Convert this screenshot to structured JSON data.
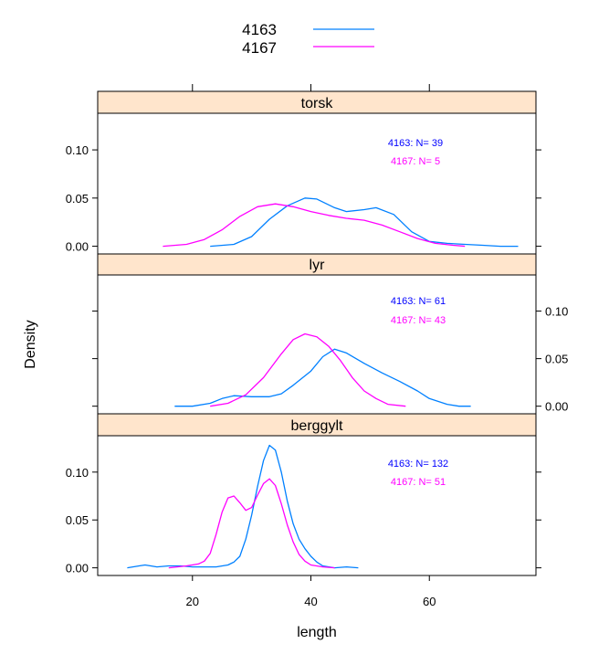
{
  "chart_data": {
    "type": "line",
    "xlabel": "length",
    "ylabel": "Density",
    "xlim": [
      4,
      78
    ],
    "ylim": [
      -0.008,
      0.138
    ],
    "x_ticks": [
      20,
      40,
      60
    ],
    "y_ticks": [
      0.0,
      0.05,
      0.1
    ],
    "y_tick_labels": [
      "0.00",
      "0.05",
      "0.10"
    ],
    "legend": [
      {
        "name": "4163",
        "color": "#0080ff"
      },
      {
        "name": "4167",
        "color": "#ff00ff"
      }
    ],
    "panels": [
      {
        "name": "torsk",
        "y_axis_side": "left",
        "counts": [
          {
            "label": "4163: N=  39",
            "color": "#0000ff"
          },
          {
            "label": "4167: N=  5",
            "color": "#ff00ff"
          }
        ],
        "series": [
          {
            "name": "4163",
            "color": "#0080ff",
            "points": [
              [
                23,
                0.0
              ],
              [
                27,
                0.002
              ],
              [
                30,
                0.01
              ],
              [
                33,
                0.028
              ],
              [
                36,
                0.042
              ],
              [
                39,
                0.05
              ],
              [
                41,
                0.049
              ],
              [
                44,
                0.04
              ],
              [
                46,
                0.036
              ],
              [
                49,
                0.038
              ],
              [
                51,
                0.04
              ],
              [
                54,
                0.033
              ],
              [
                57,
                0.015
              ],
              [
                60,
                0.005
              ],
              [
                63,
                0.003
              ],
              [
                66,
                0.002
              ],
              [
                69,
                0.001
              ],
              [
                72,
                0.0
              ],
              [
                75,
                0.0
              ]
            ]
          },
          {
            "name": "4167",
            "color": "#ff00ff",
            "points": [
              [
                15,
                0.0
              ],
              [
                19,
                0.002
              ],
              [
                22,
                0.007
              ],
              [
                25,
                0.017
              ],
              [
                28,
                0.031
              ],
              [
                31,
                0.041
              ],
              [
                34,
                0.044
              ],
              [
                37,
                0.041
              ],
              [
                40,
                0.036
              ],
              [
                43,
                0.032
              ],
              [
                46,
                0.029
              ],
              [
                49,
                0.027
              ],
              [
                52,
                0.022
              ],
              [
                55,
                0.015
              ],
              [
                58,
                0.008
              ],
              [
                61,
                0.003
              ],
              [
                64,
                0.001
              ],
              [
                66,
                0.0
              ]
            ]
          }
        ]
      },
      {
        "name": "lyr",
        "y_axis_side": "right",
        "counts": [
          {
            "label": "4163: N=  61",
            "color": "#0000ff"
          },
          {
            "label": "4167: N=  43",
            "color": "#ff00ff"
          }
        ],
        "series": [
          {
            "name": "4163",
            "color": "#0080ff",
            "points": [
              [
                17,
                0.0
              ],
              [
                20,
                0.0
              ],
              [
                23,
                0.003
              ],
              [
                25,
                0.008
              ],
              [
                27,
                0.011
              ],
              [
                30,
                0.01
              ],
              [
                33,
                0.01
              ],
              [
                35,
                0.013
              ],
              [
                37,
                0.022
              ],
              [
                40,
                0.037
              ],
              [
                42,
                0.052
              ],
              [
                44,
                0.06
              ],
              [
                46,
                0.056
              ],
              [
                49,
                0.045
              ],
              [
                52,
                0.035
              ],
              [
                55,
                0.026
              ],
              [
                58,
                0.016
              ],
              [
                60,
                0.008
              ],
              [
                63,
                0.002
              ],
              [
                65,
                0.0
              ],
              [
                67,
                0.0
              ]
            ]
          },
          {
            "name": "4167",
            "color": "#ff00ff",
            "points": [
              [
                23,
                0.0
              ],
              [
                26,
                0.003
              ],
              [
                29,
                0.012
              ],
              [
                32,
                0.03
              ],
              [
                35,
                0.055
              ],
              [
                37,
                0.07
              ],
              [
                39,
                0.076
              ],
              [
                41,
                0.073
              ],
              [
                43,
                0.063
              ],
              [
                45,
                0.048
              ],
              [
                47,
                0.03
              ],
              [
                49,
                0.016
              ],
              [
                51,
                0.008
              ],
              [
                53,
                0.002
              ],
              [
                56,
                0.0
              ]
            ]
          }
        ]
      },
      {
        "name": "berggylt",
        "y_axis_side": "left",
        "counts": [
          {
            "label": "4163: N=  132",
            "color": "#0000ff"
          },
          {
            "label": "4167: N=  51",
            "color": "#ff00ff"
          }
        ],
        "series": [
          {
            "name": "4163",
            "color": "#0080ff",
            "points": [
              [
                9,
                0.0
              ],
              [
                11,
                0.002
              ],
              [
                12,
                0.003
              ],
              [
                14,
                0.001
              ],
              [
                16,
                0.002
              ],
              [
                18,
                0.002
              ],
              [
                20,
                0.001
              ],
              [
                22,
                0.001
              ],
              [
                24,
                0.001
              ],
              [
                26,
                0.003
              ],
              [
                27,
                0.006
              ],
              [
                28,
                0.012
              ],
              [
                29,
                0.03
              ],
              [
                30,
                0.055
              ],
              [
                31,
                0.085
              ],
              [
                32,
                0.112
              ],
              [
                33,
                0.128
              ],
              [
                34,
                0.123
              ],
              [
                35,
                0.1
              ],
              [
                36,
                0.07
              ],
              [
                37,
                0.046
              ],
              [
                38,
                0.03
              ],
              [
                39,
                0.02
              ],
              [
                40,
                0.012
              ],
              [
                41,
                0.006
              ],
              [
                42,
                0.002
              ],
              [
                44,
                0.0
              ],
              [
                46,
                0.001
              ],
              [
                48,
                0.0
              ]
            ]
          },
          {
            "name": "4167",
            "color": "#ff00ff",
            "points": [
              [
                16,
                0.0
              ],
              [
                19,
                0.002
              ],
              [
                21,
                0.004
              ],
              [
                22,
                0.007
              ],
              [
                23,
                0.015
              ],
              [
                24,
                0.035
              ],
              [
                25,
                0.058
              ],
              [
                26,
                0.073
              ],
              [
                27,
                0.075
              ],
              [
                28,
                0.068
              ],
              [
                29,
                0.06
              ],
              [
                30,
                0.063
              ],
              [
                31,
                0.076
              ],
              [
                32,
                0.088
              ],
              [
                33,
                0.093
              ],
              [
                34,
                0.086
              ],
              [
                35,
                0.067
              ],
              [
                36,
                0.045
              ],
              [
                37,
                0.027
              ],
              [
                38,
                0.014
              ],
              [
                39,
                0.007
              ],
              [
                40,
                0.003
              ],
              [
                42,
                0.001
              ],
              [
                44,
                0.0
              ]
            ]
          }
        ]
      }
    ]
  }
}
